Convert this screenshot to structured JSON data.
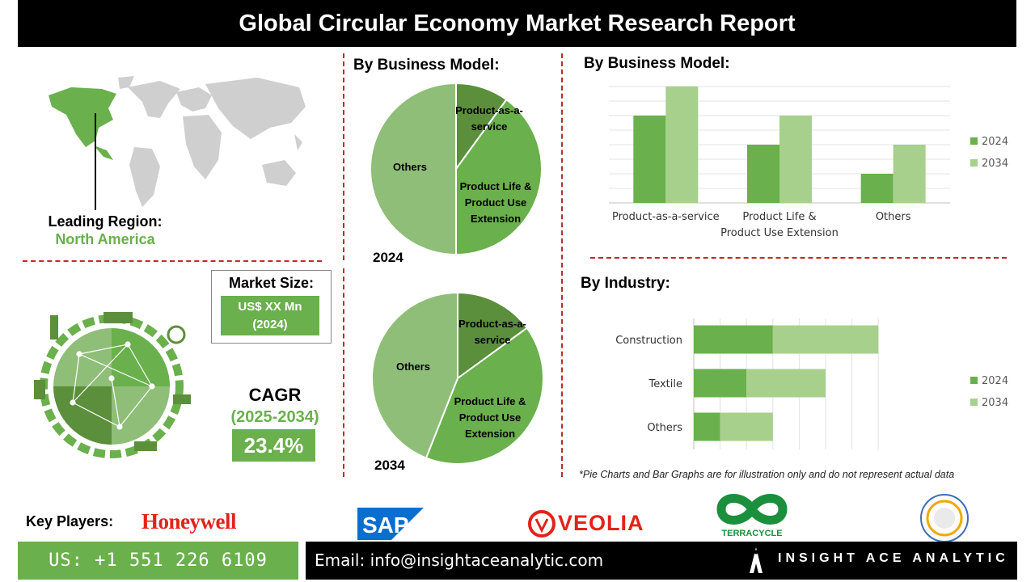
{
  "header": {
    "title": "Global Circular Economy Market Research Report"
  },
  "region": {
    "label": "Leading Region:",
    "value": "North America"
  },
  "market_size": {
    "label": "Market Size:",
    "value_line1": "US$ XX Mn",
    "value_line2": "(2024)"
  },
  "cagr": {
    "label": "CAGR",
    "period": "(2025-2034)",
    "value": "23.4%"
  },
  "pie_section": {
    "title": "By Business Model:"
  },
  "bar_section": {
    "title": "By Business Model:"
  },
  "industry_section": {
    "title": "By Industry:"
  },
  "disclaimer": "*Pie Charts and Bar Graphs are for illustration only and do not represent actual data",
  "key_players": {
    "label": "Key Players:",
    "logos": [
      "Honeywell",
      "SAP",
      "VEOLIA",
      "TERRACYCLE",
      "SOLAR IMPULSE"
    ]
  },
  "footer": {
    "phone": "US: +1 551 226 6109",
    "email": "Email: info@insightaceanalytic.com",
    "brand": "INSIGHT ACE ANALYTIC"
  },
  "colors": {
    "dark_green": "#5b8f3c",
    "mid_green": "#6ab04c",
    "light_green": "#8fbe78",
    "pale_green": "#a8d08d",
    "accent_red": "#c62828"
  },
  "chart_data": [
    {
      "type": "pie",
      "year": "2024",
      "labels": [
        "Product-as-a-service",
        "Product Life & Product Use Extension",
        "Others"
      ],
      "values": [
        10,
        40,
        50
      ]
    },
    {
      "type": "pie",
      "year": "2034",
      "labels": [
        "Product-as-a-service",
        "Product Life & Product Use Extension",
        "Others"
      ],
      "values": [
        15,
        41,
        44
      ]
    },
    {
      "type": "bar",
      "categories": [
        "Product-as-a-service",
        "Product Life & Product Use Extension",
        "Others"
      ],
      "series": [
        {
          "name": "2024",
          "values": [
            3,
            2,
            1
          ]
        },
        {
          "name": "2034",
          "values": [
            4,
            3,
            2
          ]
        }
      ],
      "ylim": [
        0,
        4
      ],
      "grid": true,
      "legend": "right"
    },
    {
      "type": "bar",
      "orientation": "horizontal",
      "stacked": true,
      "categories": [
        "Construction",
        "Textile",
        "Others"
      ],
      "series": [
        {
          "name": "2024",
          "values": [
            3,
            2,
            1
          ]
        },
        {
          "name": "2034",
          "values": [
            4,
            3,
            2
          ]
        }
      ],
      "xlim": [
        0,
        7
      ],
      "grid": true,
      "legend": "right"
    }
  ]
}
